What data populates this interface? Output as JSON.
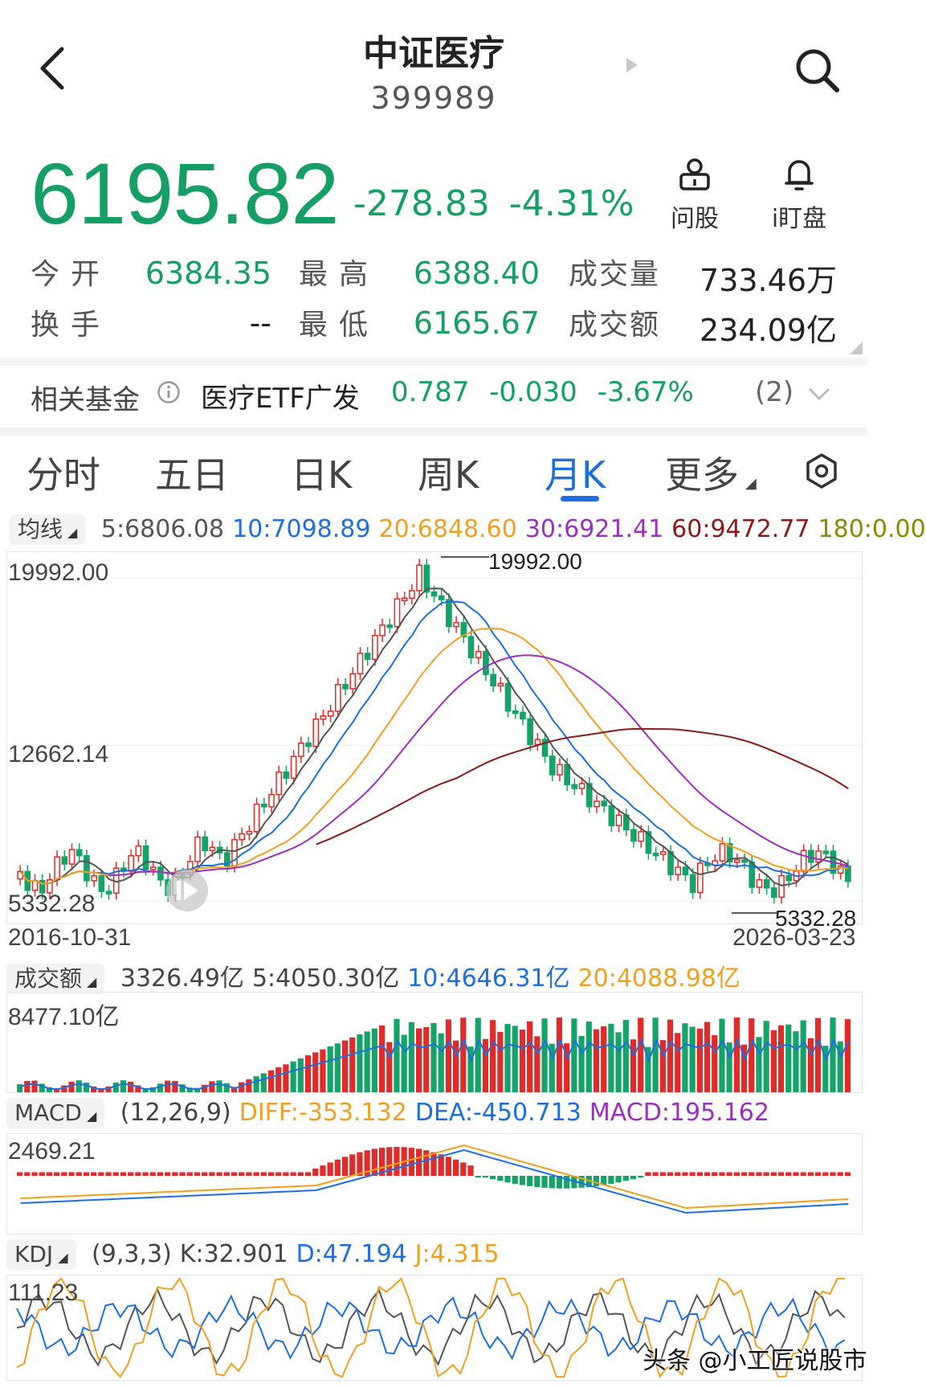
{
  "header": {
    "title": "中证医疗",
    "code": "399989"
  },
  "quote": {
    "price": "6195.82",
    "change": "-278.83",
    "change_pct": "-4.31%",
    "actions": [
      {
        "label": "问股",
        "icon": "user-chat-icon"
      },
      {
        "label": "i盯盘",
        "icon": "bell-icon"
      }
    ]
  },
  "stats": {
    "open_label": "今开",
    "open": "6384.35",
    "high_label": "最高",
    "high": "6388.40",
    "volume_label": "成交量",
    "volume": "733.46万",
    "turnover_label": "换手",
    "turnover": "--",
    "low_label": "最低",
    "low": "6165.67",
    "amount_label": "成交额",
    "amount": "234.09亿"
  },
  "fund": {
    "label": "相关基金",
    "name": "医疗ETF广发",
    "price": "0.787",
    "change": "-0.030",
    "change_pct": "-3.67%",
    "count": "(2)"
  },
  "tabs": [
    {
      "label": "分时",
      "active": false
    },
    {
      "label": "五日",
      "active": false
    },
    {
      "label": "日K",
      "active": false
    },
    {
      "label": "周K",
      "active": false
    },
    {
      "label": "月K",
      "active": true
    },
    {
      "label": "更多",
      "active": false
    }
  ],
  "ma": {
    "button": "均线",
    "items": [
      {
        "text": "5:6806.08",
        "color": "#555555"
      },
      {
        "text": "10:7098.89",
        "color": "#1d6fe0"
      },
      {
        "text": "20:6848.60",
        "color": "#f0a020"
      },
      {
        "text": "30:6921.41",
        "color": "#9b2fc0"
      },
      {
        "text": "60:9472.77",
        "color": "#8b1a1a"
      },
      {
        "text": "180:0.00",
        "color": "#8a8a00"
      }
    ]
  },
  "kchart": {
    "y_top": "19992.00",
    "y_mid": "12662.14",
    "y_bottom": "5332.28",
    "max_label": "19992.00",
    "min_label": "5332.28",
    "date_start": "2016-10-31",
    "date_end": "2026-03-23"
  },
  "amount_ind": {
    "button": "成交额",
    "items": [
      {
        "text": "3326.49亿",
        "color": "#444444"
      },
      {
        "text": "5:4050.30亿",
        "color": "#444444"
      },
      {
        "text": "10:4646.31亿",
        "color": "#1d6fe0"
      },
      {
        "text": "20:4088.98亿",
        "color": "#f0a020"
      }
    ],
    "y_top": "8477.10亿"
  },
  "macd_ind": {
    "button": "MACD",
    "items": [
      {
        "text": "(12,26,9)",
        "color": "#444444"
      },
      {
        "text": "DIFF:-353.132",
        "color": "#f0a020"
      },
      {
        "text": "DEA:-450.713",
        "color": "#1d6fe0"
      },
      {
        "text": "MACD:195.162",
        "color": "#9b2fc0"
      }
    ],
    "y_top": "2469.21"
  },
  "kdj_ind": {
    "button": "KDJ",
    "items": [
      {
        "text": "(9,3,3)",
        "color": "#444444"
      },
      {
        "text": "K:32.901",
        "color": "#444444"
      },
      {
        "text": "D:47.194",
        "color": "#1d6fe0"
      },
      {
        "text": "J:4.315",
        "color": "#f0a020"
      }
    ],
    "y_top": "111.23"
  },
  "watermark": "头条 @小工匠说股市",
  "colors": {
    "up": "#e02b2b",
    "down": "#16a36a",
    "accent": "#1d6fe0"
  }
}
